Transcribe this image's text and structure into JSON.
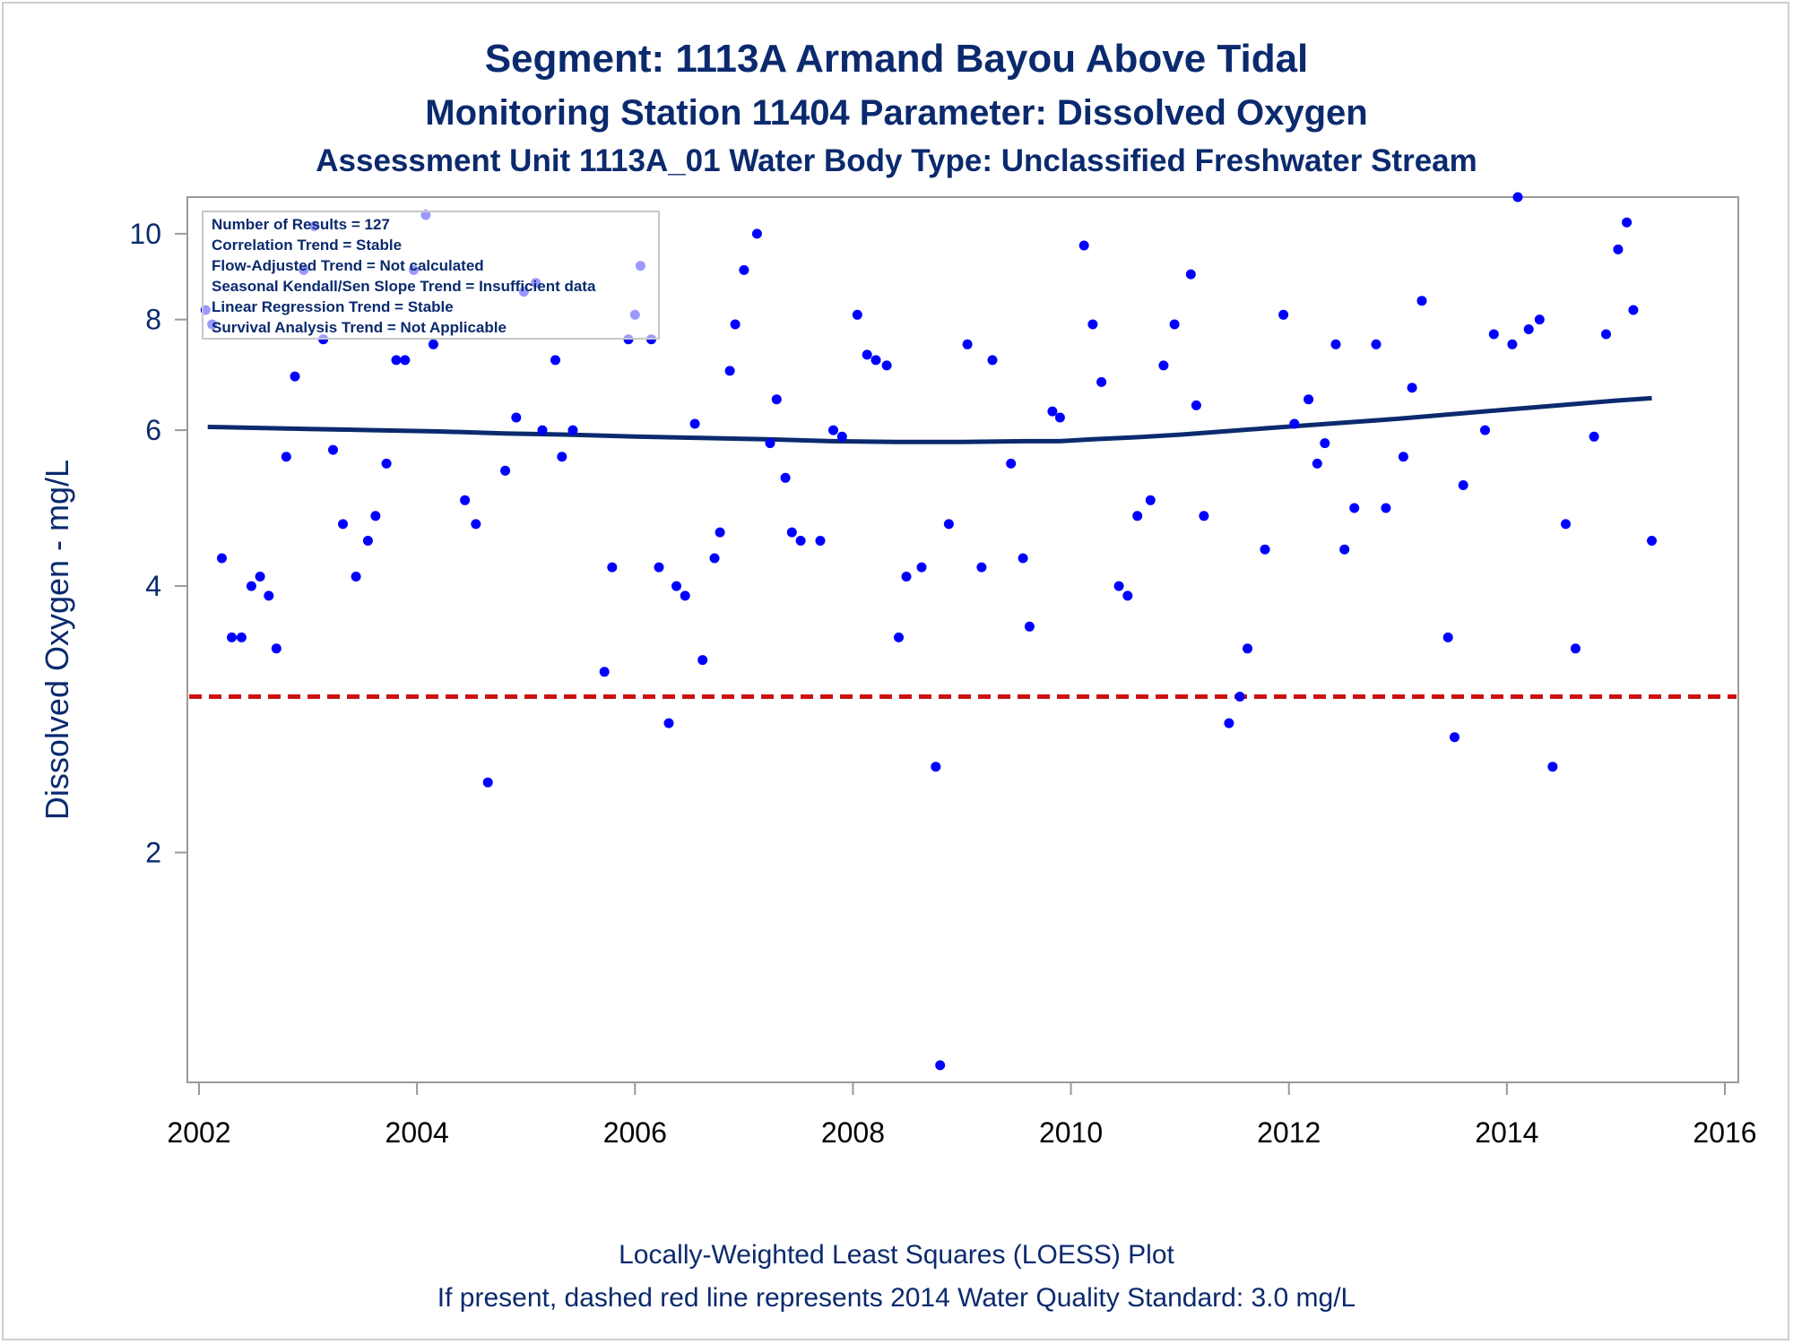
{
  "titles": {
    "line1": "Segment: 1113A  Armand Bayou Above Tidal",
    "line2": "Monitoring Station 11404 Parameter: Dissolved Oxygen",
    "line3": "Assessment Unit 1113A_01   Water Body Type: Unclassified Freshwater Stream"
  },
  "footer": {
    "line1": "Locally-Weighted Least Squares (LOESS) Plot",
    "line2": "If present, dashed red line represents 2014 Water Quality Standard: 3.0 mg/L"
  },
  "stats": [
    "Number of Results = 127",
    "Correlation Trend = Stable",
    "Flow-Adjusted Trend = Not calculated",
    "Seasonal Kendall/Sen Slope Trend = Insufficient data",
    "Linear Regression Trend = Stable",
    "Survival Analysis Trend = Not Applicable"
  ],
  "colors": {
    "points": "#0000ff",
    "loess": "#0b2a6e",
    "standard": "#cc1111",
    "text": "#0b2a6e"
  },
  "chart_data": {
    "type": "scatter",
    "y_scale": "log",
    "xlabel": "",
    "ylabel": "Dissolved Oxygen - mg/L",
    "xlim": [
      2002,
      2016
    ],
    "ylim": [
      1.1,
      11
    ],
    "x_ticks": [
      2002,
      2004,
      2006,
      2008,
      2010,
      2012,
      2014,
      2016
    ],
    "y_ticks": [
      2,
      4,
      6,
      8,
      10
    ],
    "grid": false,
    "legend_placement": "top-left",
    "standard_line": {
      "y": 3.0,
      "style": "dashed",
      "color": "#cc1111"
    },
    "loess": {
      "x": [
        2002.08,
        2002.4,
        2003.0,
        2003.6,
        2004.2,
        2004.8,
        2005.4,
        2006.0,
        2006.6,
        2007.2,
        2007.8,
        2008.4,
        2009.0,
        2009.6,
        2009.9,
        2010.2,
        2010.6,
        2011.0,
        2011.4,
        2011.8,
        2012.2,
        2012.6,
        2013.0,
        2013.4,
        2013.8,
        2014.2,
        2014.6,
        2015.0,
        2015.33
      ],
      "y": [
        6.05,
        6.04,
        6.02,
        6.0,
        5.98,
        5.95,
        5.93,
        5.9,
        5.88,
        5.86,
        5.83,
        5.82,
        5.82,
        5.83,
        5.83,
        5.86,
        5.89,
        5.93,
        5.98,
        6.03,
        6.08,
        6.13,
        6.18,
        6.24,
        6.3,
        6.36,
        6.42,
        6.48,
        6.52
      ]
    },
    "points": {
      "x": [
        2002.06,
        2002.12,
        2002.21,
        2002.3,
        2002.39,
        2002.48,
        2002.56,
        2002.64,
        2002.71,
        2002.8,
        2002.88,
        2002.96,
        2003.06,
        2003.14,
        2003.23,
        2003.32,
        2003.44,
        2003.55,
        2003.62,
        2003.72,
        2003.81,
        2003.89,
        2003.97,
        2004.08,
        2004.15,
        2004.44,
        2004.54,
        2004.65,
        2004.81,
        2004.91,
        2004.98,
        2005.09,
        2005.15,
        2005.27,
        2005.33,
        2005.43,
        2005.72,
        2005.79,
        2005.94,
        2006.0,
        2006.05,
        2006.15,
        2006.22,
        2006.31,
        2006.38,
        2006.46,
        2006.55,
        2006.62,
        2006.73,
        2006.78,
        2006.87,
        2006.92,
        2007.0,
        2007.12,
        2007.24,
        2007.3,
        2007.38,
        2007.44,
        2007.52,
        2007.7,
        2007.82,
        2007.9,
        2008.04,
        2008.13,
        2008.21,
        2008.31,
        2008.42,
        2008.49,
        2008.63,
        2008.76,
        2008.8,
        2008.88,
        2009.05,
        2009.18,
        2009.28,
        2009.45,
        2009.56,
        2009.62,
        2009.83,
        2009.9,
        2010.12,
        2010.2,
        2010.28,
        2010.44,
        2010.52,
        2010.61,
        2010.73,
        2010.85,
        2010.95,
        2011.1,
        2011.15,
        2011.22,
        2011.45,
        2011.55,
        2011.62,
        2011.78,
        2011.95,
        2012.05,
        2012.18,
        2012.26,
        2012.33,
        2012.43,
        2012.51,
        2012.6,
        2012.8,
        2012.89,
        2013.05,
        2013.13,
        2013.22,
        2013.46,
        2013.52,
        2013.6,
        2013.8,
        2013.88,
        2014.05,
        2014.1,
        2014.2,
        2014.3,
        2014.42,
        2014.54,
        2014.63,
        2014.8,
        2014.91,
        2015.02,
        2015.1,
        2015.16,
        2015.33
      ],
      "y": [
        8.2,
        7.9,
        4.3,
        3.5,
        3.5,
        4.0,
        4.1,
        3.9,
        3.4,
        5.6,
        6.9,
        9.1,
        10.2,
        7.6,
        5.7,
        4.7,
        4.1,
        4.5,
        4.8,
        5.5,
        7.2,
        7.2,
        9.1,
        10.5,
        7.5,
        5.0,
        4.7,
        2.4,
        5.4,
        6.2,
        8.6,
        8.8,
        6.0,
        7.2,
        5.6,
        6.0,
        3.2,
        4.2,
        7.6,
        8.1,
        9.2,
        7.6,
        4.2,
        2.8,
        4.0,
        3.9,
        6.1,
        3.3,
        4.3,
        4.6,
        7.0,
        7.9,
        9.1,
        10.0,
        5.8,
        6.5,
        5.3,
        4.6,
        4.5,
        4.5,
        6.0,
        5.9,
        8.1,
        7.3,
        7.2,
        7.1,
        3.5,
        4.1,
        4.2,
        2.5,
        1.15,
        4.7,
        7.5,
        4.2,
        7.2,
        5.5,
        4.3,
        3.6,
        6.3,
        6.2,
        9.7,
        7.9,
        6.8,
        4.0,
        3.9,
        4.8,
        5.0,
        7.1,
        7.9,
        9.0,
        6.4,
        4.8,
        2.8,
        3.0,
        3.4,
        4.4,
        8.1,
        6.1,
        6.5,
        5.5,
        5.8,
        7.5,
        4.4,
        4.9,
        7.5,
        4.9,
        5.6,
        6.7,
        8.4,
        3.5,
        2.7,
        5.2,
        6.0,
        7.7,
        7.5,
        11.0,
        7.8,
        8.0,
        2.5,
        4.7,
        3.4,
        5.9,
        7.7,
        9.6,
        10.3,
        8.2,
        4.5
      ]
    }
  }
}
